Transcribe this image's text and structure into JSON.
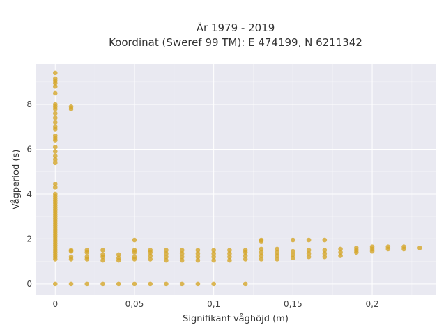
{
  "chart_data": {
    "type": "scatter",
    "title_line1": "År 1979 - 2019",
    "title_line2": "Koordinat (Sweref 99 TM): E 474199, N 6211342",
    "xlabel": "Signifikant våghöjd (m)",
    "ylabel": "Vågperiod (s)",
    "xlim": [
      -0.012,
      0.24
    ],
    "ylim": [
      -0.5,
      9.8
    ],
    "x_ticks": [
      0,
      0.05,
      0.1,
      0.15,
      0.2
    ],
    "x_tick_labels": [
      "0",
      "0,05",
      "0,1",
      "0,15",
      "0,2"
    ],
    "y_ticks": [
      0,
      2,
      4,
      6,
      8
    ],
    "y_tick_labels": [
      "0",
      "2",
      "4",
      "6",
      "8"
    ],
    "grid": true,
    "color": "#d4a62a",
    "series": [
      {
        "x": [
          0.0,
          0.0,
          0.0,
          0.0,
          0.0,
          0.0,
          0.0,
          0.0,
          0.0,
          0.0,
          0.0,
          0.0,
          0.0,
          0.0,
          0.0,
          0.0,
          0.0,
          0.0,
          0.0,
          0.0,
          0.0,
          0.0,
          0.0,
          0.0,
          0.0,
          0.0,
          0.0,
          0.0,
          0.0,
          0.0,
          0.0,
          0.0,
          0.0,
          0.0,
          0.0,
          0.0,
          0.0,
          0.0,
          0.0,
          0.0,
          0.0,
          0.0,
          0.0,
          0.0,
          0.0,
          0.0,
          0.0,
          0.0,
          0.0,
          0.0,
          0.0,
          0.0,
          0.0,
          0.0,
          0.0,
          0.01,
          0.01,
          0.01,
          0.01,
          0.01,
          0.01,
          0.01,
          0.02,
          0.02,
          0.02,
          0.02,
          0.02,
          0.03,
          0.03,
          0.03,
          0.03,
          0.03,
          0.04,
          0.04,
          0.04,
          0.04,
          0.05,
          0.05,
          0.05,
          0.05,
          0.05,
          0.05,
          0.06,
          0.06,
          0.06,
          0.06,
          0.06,
          0.07,
          0.07,
          0.07,
          0.07,
          0.07,
          0.08,
          0.08,
          0.08,
          0.08,
          0.08,
          0.09,
          0.09,
          0.09,
          0.09,
          0.09,
          0.1,
          0.1,
          0.1,
          0.1,
          0.1,
          0.11,
          0.11,
          0.11,
          0.11,
          0.12,
          0.12,
          0.12,
          0.12,
          0.12,
          0.13,
          0.13,
          0.13,
          0.13,
          0.13,
          0.13,
          0.14,
          0.14,
          0.14,
          0.14,
          0.15,
          0.15,
          0.15,
          0.15,
          0.16,
          0.16,
          0.16,
          0.16,
          0.17,
          0.17,
          0.17,
          0.17,
          0.18,
          0.18,
          0.18,
          0.19,
          0.19,
          0.19,
          0.2,
          0.2,
          0.2,
          0.21,
          0.21,
          0.22,
          0.22,
          0.23
        ],
        "y": [
          0.0,
          1.1,
          1.2,
          1.3,
          1.4,
          1.5,
          1.6,
          1.7,
          1.8,
          1.9,
          2.0,
          2.1,
          2.2,
          2.3,
          2.4,
          2.5,
          2.6,
          2.7,
          2.8,
          2.9,
          3.0,
          3.1,
          3.2,
          3.3,
          3.4,
          3.5,
          3.6,
          3.7,
          3.8,
          3.9,
          4.0,
          4.3,
          4.45,
          5.4,
          5.55,
          5.7,
          5.9,
          6.1,
          6.4,
          6.5,
          6.6,
          6.9,
          7.0,
          7.2,
          7.4,
          7.6,
          7.8,
          7.9,
          8.0,
          8.5,
          8.8,
          8.95,
          9.05,
          9.15,
          9.4,
          0.0,
          1.1,
          1.2,
          1.45,
          1.5,
          7.8,
          7.9,
          0.0,
          1.1,
          1.2,
          1.4,
          1.5,
          0.0,
          1.05,
          1.2,
          1.3,
          1.5,
          0.0,
          1.05,
          1.15,
          1.3,
          0.0,
          1.1,
          1.2,
          1.4,
          1.5,
          1.95,
          0.0,
          1.1,
          1.25,
          1.4,
          1.5,
          0.0,
          1.05,
          1.2,
          1.35,
          1.5,
          0.0,
          1.05,
          1.2,
          1.35,
          1.5,
          0.0,
          1.05,
          1.2,
          1.35,
          1.5,
          0.0,
          1.05,
          1.2,
          1.35,
          1.5,
          1.05,
          1.2,
          1.35,
          1.5,
          0.0,
          1.1,
          1.25,
          1.4,
          1.5,
          1.1,
          1.25,
          1.4,
          1.55,
          1.9,
          1.95,
          1.1,
          1.25,
          1.4,
          1.55,
          1.15,
          1.3,
          1.45,
          1.95,
          1.2,
          1.35,
          1.5,
          1.95,
          1.2,
          1.35,
          1.5,
          1.95,
          1.25,
          1.4,
          1.55,
          1.4,
          1.5,
          1.6,
          1.45,
          1.55,
          1.65,
          1.55,
          1.65,
          1.55,
          1.65,
          1.6
        ]
      }
    ]
  }
}
